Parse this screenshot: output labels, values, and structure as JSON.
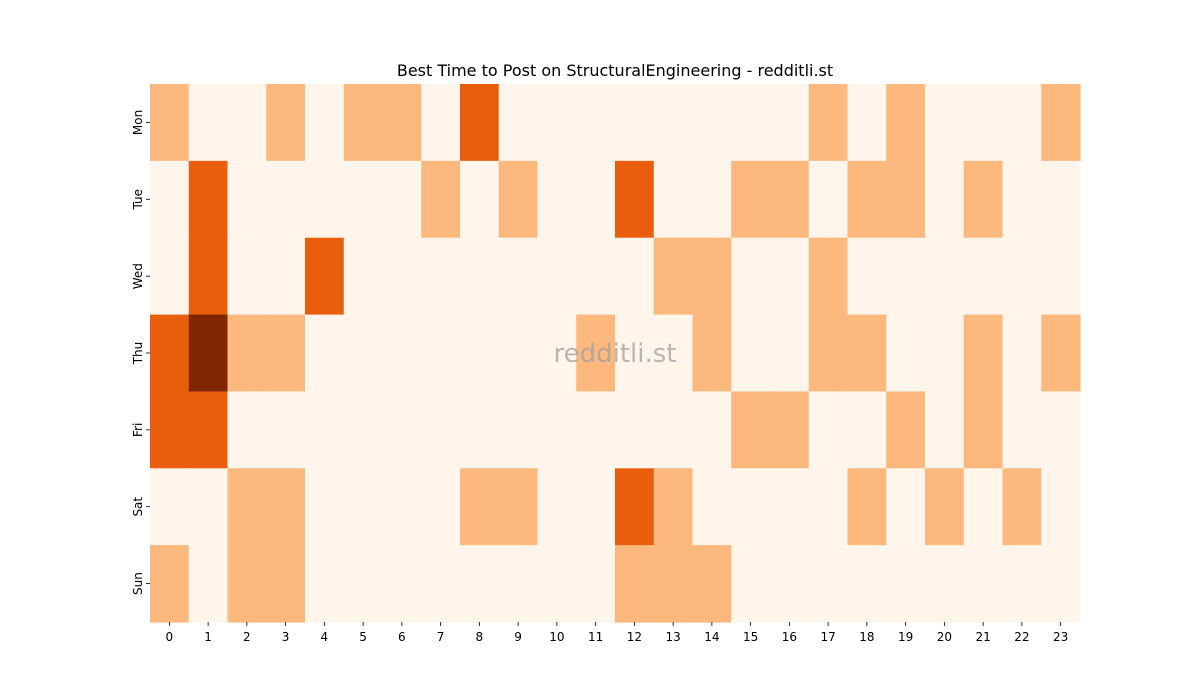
{
  "chart_data": {
    "type": "heatmap",
    "title": "Best Time to Post on StructuralEngineering - redditli.st",
    "watermark": "redditli.st",
    "xlabel": "",
    "ylabel": "",
    "x": [
      "0",
      "1",
      "2",
      "3",
      "4",
      "5",
      "6",
      "7",
      "8",
      "9",
      "10",
      "11",
      "12",
      "13",
      "14",
      "15",
      "16",
      "17",
      "18",
      "19",
      "20",
      "21",
      "22",
      "23"
    ],
    "y": [
      "Mon",
      "Tue",
      "Wed",
      "Thu",
      "Fri",
      "Sat",
      "Sun"
    ],
    "values": [
      [
        1,
        0,
        0,
        1,
        0,
        1,
        1,
        0,
        2,
        0,
        0,
        0,
        0,
        0,
        0,
        0,
        0,
        1,
        0,
        1,
        0,
        0,
        0,
        1
      ],
      [
        0,
        2,
        0,
        0,
        0,
        0,
        0,
        1,
        0,
        1,
        0,
        0,
        2,
        0,
        0,
        1,
        1,
        0,
        1,
        1,
        0,
        1,
        0,
        0
      ],
      [
        0,
        2,
        0,
        0,
        2,
        0,
        0,
        0,
        0,
        0,
        0,
        0,
        0,
        1,
        1,
        0,
        0,
        1,
        0,
        0,
        0,
        0,
        0,
        0
      ],
      [
        2,
        3,
        1,
        1,
        0,
        0,
        0,
        0,
        0,
        0,
        0,
        1,
        0,
        0,
        1,
        0,
        0,
        1,
        1,
        0,
        0,
        1,
        0,
        1
      ],
      [
        2,
        2,
        0,
        0,
        0,
        0,
        0,
        0,
        0,
        0,
        0,
        0,
        0,
        0,
        0,
        1,
        1,
        0,
        0,
        1,
        0,
        1,
        0,
        0
      ],
      [
        0,
        0,
        1,
        1,
        0,
        0,
        0,
        0,
        1,
        1,
        0,
        0,
        2,
        1,
        0,
        0,
        0,
        0,
        1,
        0,
        1,
        0,
        1,
        0
      ],
      [
        1,
        0,
        1,
        1,
        0,
        0,
        0,
        0,
        0,
        0,
        0,
        0,
        1,
        1,
        1,
        0,
        0,
        0,
        0,
        0,
        0,
        0,
        0,
        0
      ]
    ],
    "color_scale": [
      "#fff5eb",
      "#fdb97d",
      "#e85e0d",
      "#7f2704"
    ],
    "grid": false,
    "legend": "none"
  }
}
